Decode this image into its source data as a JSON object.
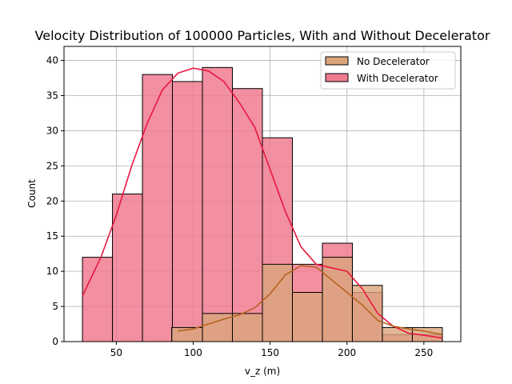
{
  "chart_data": {
    "type": "bar",
    "title": "Velocity Distribution of 100000 Particles, With and Without Decelerator",
    "xlabel": "v_z (m)",
    "ylabel": "Count",
    "xlim": [
      16,
      274
    ],
    "ylim": [
      0,
      42
    ],
    "xticks": [
      50,
      100,
      150,
      200,
      250
    ],
    "yticks": [
      0,
      5,
      10,
      15,
      20,
      25,
      30,
      35,
      40
    ],
    "grid": true,
    "legend_position": "top-right",
    "series": [
      {
        "name": "With Decelerator",
        "color": "#f07b8f",
        "kde_color": "#e8173f",
        "bins": [
          {
            "x0": 28,
            "x1": 47.5,
            "value": 12
          },
          {
            "x0": 47.5,
            "x1": 67,
            "value": 21
          },
          {
            "x0": 67,
            "x1": 86.5,
            "value": 38
          },
          {
            "x0": 86.5,
            "x1": 106,
            "value": 37
          },
          {
            "x0": 106,
            "x1": 125.5,
            "value": 39
          },
          {
            "x0": 125.5,
            "x1": 145,
            "value": 36
          },
          {
            "x0": 145,
            "x1": 164.5,
            "value": 29
          },
          {
            "x0": 164.5,
            "x1": 184,
            "value": 11
          },
          {
            "x0": 184,
            "x1": 203.5,
            "value": 14
          },
          {
            "x0": 203.5,
            "x1": 223,
            "value": 7
          },
          {
            "x0": 223,
            "x1": 242.5,
            "value": 1
          },
          {
            "x0": 242.5,
            "x1": 262,
            "value": 1
          }
        ],
        "kde": [
          [
            28,
            6.5
          ],
          [
            40,
            12
          ],
          [
            50,
            18
          ],
          [
            60,
            25
          ],
          [
            70,
            31
          ],
          [
            80,
            35.8
          ],
          [
            90,
            38.2
          ],
          [
            100,
            38.9
          ],
          [
            110,
            38.5
          ],
          [
            120,
            37
          ],
          [
            130,
            34
          ],
          [
            140,
            30.5
          ],
          [
            150,
            24.5
          ],
          [
            160,
            18.5
          ],
          [
            170,
            13.5
          ],
          [
            180,
            11
          ],
          [
            190,
            10.5
          ],
          [
            200,
            10
          ],
          [
            210,
            7.5
          ],
          [
            220,
            4
          ],
          [
            230,
            2.2
          ],
          [
            240,
            1.2
          ],
          [
            250,
            0.9
          ],
          [
            262,
            0.5
          ]
        ]
      },
      {
        "name": "No Decelerator",
        "color": "#d9a57c",
        "kde_color": "#b5631f",
        "bins": [
          {
            "x0": 86,
            "x1": 106,
            "value": 2
          },
          {
            "x0": 106,
            "x1": 125.5,
            "value": 4
          },
          {
            "x0": 125.5,
            "x1": 145,
            "value": 4
          },
          {
            "x0": 145,
            "x1": 164.5,
            "value": 11
          },
          {
            "x0": 164.5,
            "x1": 184,
            "value": 7
          },
          {
            "x0": 184,
            "x1": 203.5,
            "value": 12
          },
          {
            "x0": 203.5,
            "x1": 223,
            "value": 8
          },
          {
            "x0": 223,
            "x1": 242.5,
            "value": 2
          },
          {
            "x0": 242.5,
            "x1": 262,
            "value": 2
          }
        ],
        "kde": [
          [
            90,
            1.5
          ],
          [
            100,
            1.8
          ],
          [
            110,
            2.5
          ],
          [
            120,
            3.2
          ],
          [
            130,
            3.8
          ],
          [
            140,
            4.8
          ],
          [
            150,
            6.8
          ],
          [
            160,
            9.5
          ],
          [
            170,
            10.8
          ],
          [
            180,
            10.6
          ],
          [
            190,
            8.8
          ],
          [
            200,
            7
          ],
          [
            210,
            5.2
          ],
          [
            220,
            3
          ],
          [
            230,
            2.2
          ],
          [
            240,
            1.8
          ],
          [
            250,
            1.5
          ],
          [
            262,
            1
          ]
        ]
      }
    ],
    "legend": [
      "No Decelerator",
      "With Decelerator"
    ]
  }
}
